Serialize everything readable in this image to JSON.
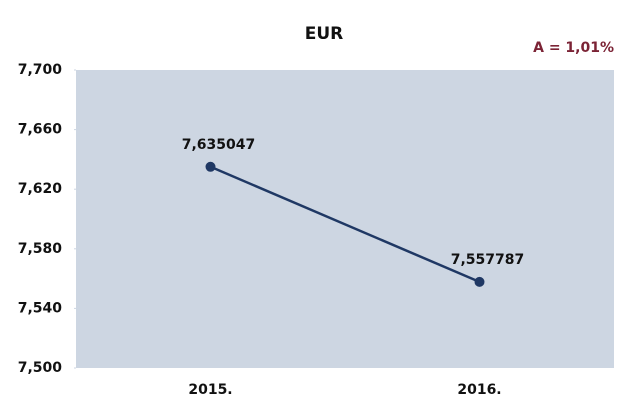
{
  "chart_data": {
    "type": "line",
    "title": "EUR",
    "annotation": "A = 1,01%",
    "categories": [
      "2015.",
      "2016."
    ],
    "series": [
      {
        "name": "EUR",
        "color": "#1f3864",
        "values": [
          7.635047,
          7.557787
        ],
        "value_labels": [
          "7,635047",
          "7,557787"
        ]
      }
    ],
    "ylim": [
      7.5,
      7.7
    ],
    "yticks": [
      {
        "value": 7.5,
        "label": "7,500"
      },
      {
        "value": 7.54,
        "label": "7,540"
      },
      {
        "value": 7.58,
        "label": "7,580"
      },
      {
        "value": 7.62,
        "label": "7,620"
      },
      {
        "value": 7.66,
        "label": "7,660"
      },
      {
        "value": 7.7,
        "label": "7,700"
      }
    ],
    "grid": false
  }
}
